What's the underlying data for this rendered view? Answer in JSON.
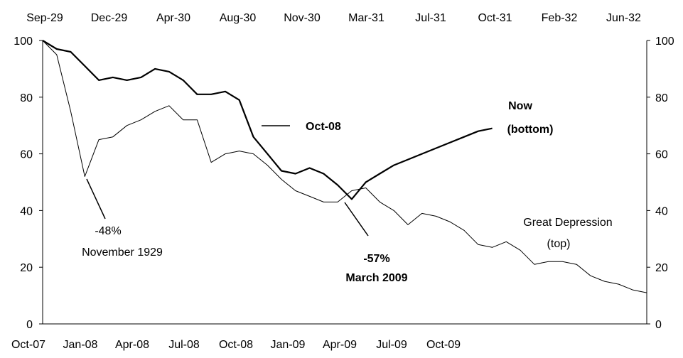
{
  "chart_data": {
    "type": "line",
    "x_top": [
      "Sep-29",
      "Dec-29",
      "Apr-30",
      "Aug-30",
      "Nov-30",
      "Mar-31",
      "Jul-31",
      "Oct-31",
      "Feb-32",
      "Jun-32"
    ],
    "x_bottom": [
      "Oct-07",
      "Jan-08",
      "Apr-08",
      "Jul-08",
      "Oct-08",
      "Jan-09",
      "Apr-09",
      "Jul-09",
      "Oct-09"
    ],
    "ylim": [
      0,
      100
    ],
    "yticks": [
      0,
      20,
      40,
      60,
      80,
      100
    ],
    "y2lim": [
      0,
      100
    ],
    "y2ticks": [
      0,
      20,
      40,
      60,
      80,
      100
    ],
    "series": [
      {
        "name": "Great Depression",
        "color": "#000000",
        "width": 1,
        "values": [
          100,
          95,
          75,
          52,
          65,
          66,
          70,
          72,
          75,
          77,
          72,
          72,
          57,
          60,
          61,
          60,
          56,
          51,
          47,
          45,
          43,
          43,
          47,
          48,
          43,
          40,
          35,
          39,
          38,
          36,
          33,
          28,
          27,
          29,
          26,
          21,
          22,
          22,
          21,
          17,
          15,
          14,
          12,
          11
        ]
      },
      {
        "name": "Now",
        "color": "#000000",
        "width": 2.2,
        "values": [
          100,
          97,
          96,
          91,
          86,
          87,
          86,
          87,
          90,
          89,
          86,
          81,
          81,
          82,
          79,
          66,
          60,
          54,
          53,
          55,
          53,
          49,
          44,
          50,
          53,
          56,
          58,
          60,
          62,
          64,
          66,
          68,
          69
        ]
      }
    ],
    "annotations": {
      "gd_low": "-48%",
      "gd_low_date": "November 1929",
      "now_low": "-57%",
      "now_low_date": "March 2009",
      "oct08": "Oct-08",
      "now_label": "Now",
      "now_sub": "(bottom)",
      "gd_label": "Great Depression",
      "gd_sub": "(top)"
    }
  }
}
